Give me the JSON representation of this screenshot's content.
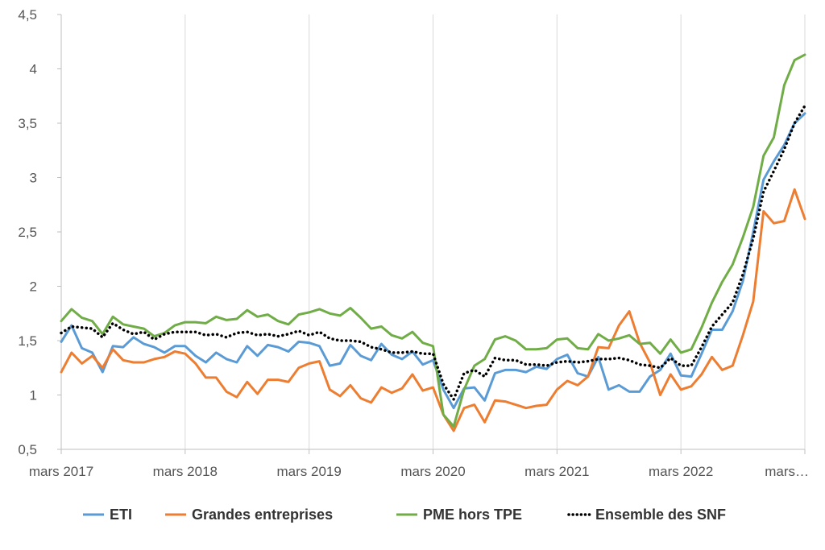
{
  "chart_data": {
    "type": "line",
    "title": "",
    "xlabel": "",
    "ylabel": "",
    "ylim": [
      0.5,
      4.5
    ],
    "yticks": [
      0.5,
      1,
      1.5,
      2,
      2.5,
      3,
      3.5,
      4,
      4.5
    ],
    "ytick_labels": [
      "0,5",
      "1",
      "1,5",
      "2",
      "2,5",
      "3",
      "3,5",
      "4",
      "4,5"
    ],
    "xtick_labels": [
      "mars 2017",
      "mars 2018",
      "mars 2019",
      "mars 2020",
      "mars 2021",
      "mars 2022",
      "mars…"
    ],
    "xtick_index": [
      0,
      12,
      24,
      36,
      48,
      60,
      72
    ],
    "x_start": "2017-03",
    "grid": "vertical",
    "legend_position": "bottom",
    "series": [
      {
        "name": "ETI",
        "color": "#5b9bd5",
        "dash": "solid",
        "values": [
          1.49,
          1.64,
          1.43,
          1.39,
          1.21,
          1.45,
          1.44,
          1.53,
          1.47,
          1.44,
          1.39,
          1.45,
          1.45,
          1.36,
          1.3,
          1.39,
          1.33,
          1.3,
          1.45,
          1.36,
          1.46,
          1.44,
          1.4,
          1.49,
          1.48,
          1.45,
          1.27,
          1.29,
          1.46,
          1.36,
          1.32,
          1.47,
          1.37,
          1.33,
          1.4,
          1.28,
          1.32,
          1.05,
          0.88,
          1.06,
          1.07,
          0.95,
          1.2,
          1.23,
          1.23,
          1.21,
          1.26,
          1.24,
          1.33,
          1.37,
          1.2,
          1.17,
          1.35,
          1.05,
          1.09,
          1.03,
          1.03,
          1.17,
          1.23,
          1.38,
          1.18,
          1.17,
          1.38,
          1.6,
          1.6,
          1.77,
          2.05,
          2.5,
          2.98,
          3.15,
          3.3,
          3.5,
          3.59
        ]
      },
      {
        "name": "Grandes entreprises",
        "color": "#ed7d31",
        "dash": "solid",
        "values": [
          1.21,
          1.39,
          1.29,
          1.36,
          1.25,
          1.42,
          1.32,
          1.3,
          1.3,
          1.33,
          1.35,
          1.4,
          1.38,
          1.29,
          1.16,
          1.16,
          1.03,
          0.98,
          1.12,
          1.01,
          1.14,
          1.14,
          1.12,
          1.25,
          1.29,
          1.31,
          1.05,
          0.99,
          1.09,
          0.97,
          0.93,
          1.07,
          1.02,
          1.06,
          1.19,
          1.04,
          1.07,
          0.82,
          0.67,
          0.88,
          0.91,
          0.75,
          0.95,
          0.94,
          0.91,
          0.88,
          0.9,
          0.91,
          1.05,
          1.13,
          1.09,
          1.17,
          1.44,
          1.43,
          1.64,
          1.77,
          1.48,
          1.3,
          1.0,
          1.19,
          1.05,
          1.08,
          1.19,
          1.35,
          1.23,
          1.27,
          1.55,
          1.86,
          2.69,
          2.58,
          2.6,
          2.89,
          2.62
        ]
      },
      {
        "name": "PME hors TPE",
        "color": "#70ad47",
        "dash": "solid",
        "values": [
          1.68,
          1.79,
          1.71,
          1.68,
          1.56,
          1.72,
          1.65,
          1.63,
          1.61,
          1.54,
          1.57,
          1.64,
          1.67,
          1.67,
          1.66,
          1.72,
          1.69,
          1.7,
          1.78,
          1.72,
          1.74,
          1.68,
          1.65,
          1.74,
          1.76,
          1.79,
          1.75,
          1.73,
          1.8,
          1.71,
          1.61,
          1.63,
          1.55,
          1.52,
          1.58,
          1.48,
          1.45,
          0.82,
          0.71,
          1.05,
          1.27,
          1.33,
          1.51,
          1.54,
          1.5,
          1.42,
          1.42,
          1.43,
          1.51,
          1.52,
          1.43,
          1.42,
          1.56,
          1.5,
          1.52,
          1.55,
          1.47,
          1.48,
          1.38,
          1.51,
          1.39,
          1.42,
          1.62,
          1.85,
          2.04,
          2.2,
          2.45,
          2.73,
          3.2,
          3.37,
          3.85,
          4.08,
          4.13
        ]
      },
      {
        "name": "Ensemble des SNF",
        "color": "#000000",
        "dash": "dotted",
        "values": [
          1.57,
          1.63,
          1.62,
          1.61,
          1.53,
          1.66,
          1.6,
          1.56,
          1.58,
          1.51,
          1.56,
          1.58,
          1.58,
          1.58,
          1.55,
          1.56,
          1.53,
          1.57,
          1.58,
          1.55,
          1.56,
          1.54,
          1.56,
          1.59,
          1.55,
          1.58,
          1.52,
          1.5,
          1.5,
          1.49,
          1.44,
          1.42,
          1.39,
          1.39,
          1.4,
          1.38,
          1.38,
          1.1,
          0.96,
          1.2,
          1.23,
          1.17,
          1.34,
          1.32,
          1.32,
          1.28,
          1.28,
          1.27,
          1.3,
          1.31,
          1.3,
          1.31,
          1.33,
          1.33,
          1.34,
          1.32,
          1.28,
          1.27,
          1.25,
          1.34,
          1.27,
          1.27,
          1.44,
          1.63,
          1.74,
          1.85,
          2.11,
          2.44,
          2.87,
          3.06,
          3.26,
          3.5,
          3.66
        ]
      }
    ]
  }
}
